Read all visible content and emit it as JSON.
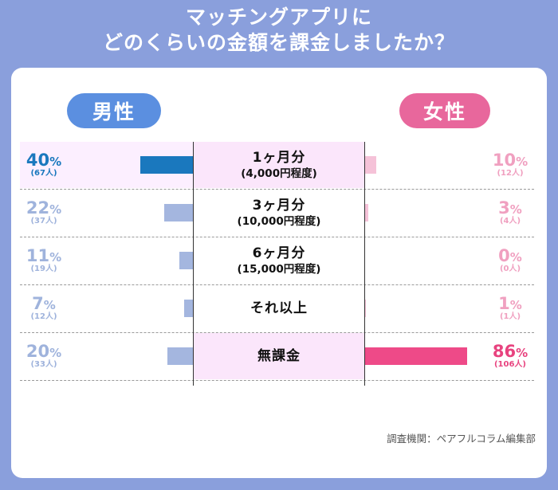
{
  "title_line1": "マッチングアプリに",
  "title_line2": "どのくらいの金額を課金しましたか？",
  "male_label": "男性",
  "female_label": "女性",
  "source": "調査機関：ペアフルコラム編集部",
  "colors": {
    "male_strong": "#1a78be",
    "male_weak": "#a4b6df",
    "female_strong": "#ee4a88",
    "female_weak": "#f5c2d8"
  },
  "chart_data": {
    "type": "bar",
    "title": "マッチングアプリにどのくらいの金額を課金しましたか？",
    "orientation": "horizontal-butterfly",
    "categories": [
      {
        "main": "1ヶ月分",
        "sub": "(4,000円程度)"
      },
      {
        "main": "3ヶ月分",
        "sub": "(10,000円程度)"
      },
      {
        "main": "6ヶ月分",
        "sub": "(15,000円程度)"
      },
      {
        "main": "それ以上",
        "sub": ""
      },
      {
        "main": "無課金",
        "sub": ""
      }
    ],
    "series": [
      {
        "name": "男性",
        "values": [
          40,
          22,
          11,
          7,
          20
        ],
        "counts": [
          "(67人)",
          "(37人)",
          "(19人)",
          "(12人)",
          "(33人)"
        ]
      },
      {
        "name": "女性",
        "values": [
          10,
          3,
          0,
          1,
          86
        ],
        "counts": [
          "(12人)",
          "(4人)",
          "(0人)",
          "(1人)",
          "(106人)"
        ]
      }
    ],
    "unit": "%",
    "xlim": [
      0,
      100
    ]
  }
}
